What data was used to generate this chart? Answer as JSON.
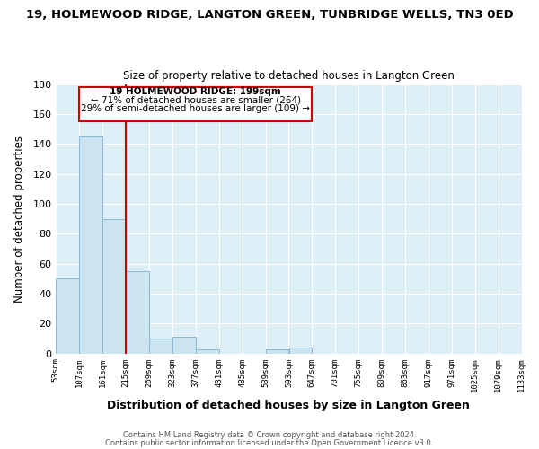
{
  "title": "19, HOLMEWOOD RIDGE, LANGTON GREEN, TUNBRIDGE WELLS, TN3 0ED",
  "subtitle": "Size of property relative to detached houses in Langton Green",
  "xlabel": "Distribution of detached houses by size in Langton Green",
  "ylabel": "Number of detached properties",
  "bar_color": "#cce4f0",
  "bar_edge_color": "#8ab8d4",
  "bins": [
    "53sqm",
    "107sqm",
    "161sqm",
    "215sqm",
    "269sqm",
    "323sqm",
    "377sqm",
    "431sqm",
    "485sqm",
    "539sqm",
    "593sqm",
    "647sqm",
    "701sqm",
    "755sqm",
    "809sqm",
    "863sqm",
    "917sqm",
    "971sqm",
    "1025sqm",
    "1079sqm",
    "1133sqm"
  ],
  "values": [
    50,
    145,
    90,
    55,
    10,
    11,
    3,
    0,
    0,
    3,
    4,
    0,
    0,
    0,
    0,
    0,
    0,
    0,
    0,
    0
  ],
  "annotation_line1": "19 HOLMEWOOD RIDGE: 199sqm",
  "annotation_line2": "← 71% of detached houses are smaller (264)",
  "annotation_line3": "29% of semi-detached houses are larger (109) →",
  "vline_color": "#cc0000",
  "footer1": "Contains HM Land Registry data © Crown copyright and database right 2024.",
  "footer2": "Contains public sector information licensed under the Open Government Licence v3.0.",
  "ylim": [
    0,
    180
  ],
  "bin_width": 54
}
